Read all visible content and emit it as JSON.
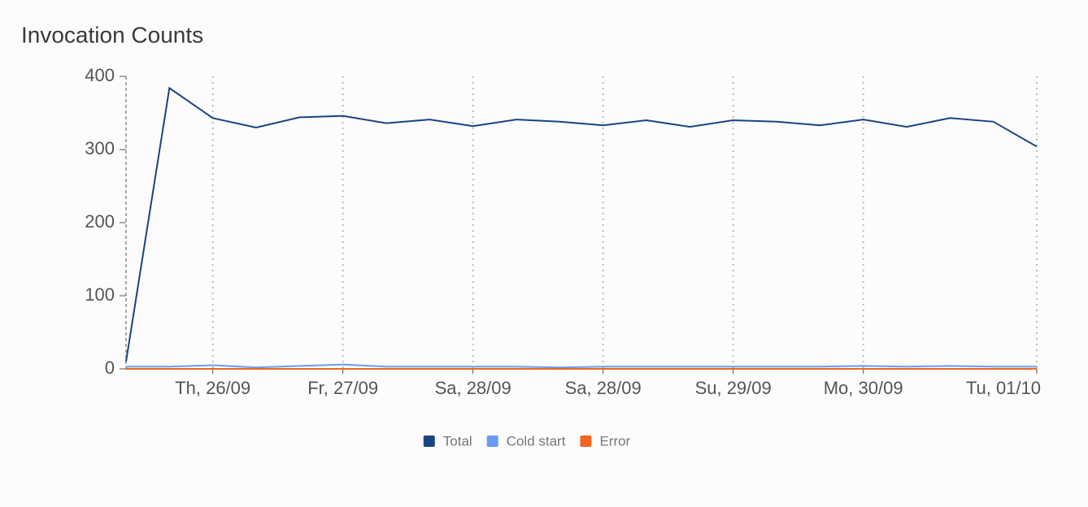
{
  "chart_data": {
    "type": "line",
    "title": "Invocation Counts",
    "categories": [
      null,
      null,
      "Th, 26/09",
      null,
      null,
      "Fr, 27/09",
      null,
      null,
      "Sa, 28/09",
      null,
      null,
      "Sa, 28/09",
      null,
      null,
      "Su, 29/09",
      null,
      null,
      "Mo, 30/09",
      null,
      null,
      null,
      "Tu, 01/10"
    ],
    "series": [
      {
        "name": "Total",
        "color": "#1a4480",
        "values": [
          10,
          384,
          343,
          330,
          344,
          346,
          336,
          341,
          332,
          341,
          338,
          333,
          340,
          331,
          340,
          338,
          333,
          341,
          331,
          343,
          338,
          304
        ]
      },
      {
        "name": "Cold start",
        "color": "#6b9bef",
        "values": [
          3,
          3,
          5,
          2,
          4,
          6,
          3,
          3,
          3,
          3,
          2,
          3,
          3,
          3,
          3,
          3,
          3,
          4,
          3,
          4,
          3,
          3
        ]
      },
      {
        "name": "Error",
        "color": "#f26522",
        "values": [
          0,
          0,
          0,
          0,
          0,
          0,
          0,
          0,
          0,
          0,
          0,
          0,
          0,
          0,
          0,
          0,
          0,
          0,
          0,
          0,
          0,
          0
        ]
      }
    ],
    "ylim": [
      0,
      400
    ],
    "yticks": [
      0,
      100,
      200,
      300,
      400
    ],
    "grid": true
  }
}
